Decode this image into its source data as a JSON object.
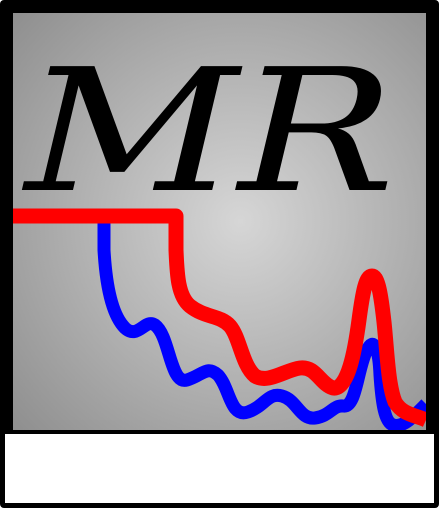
{
  "logo": {
    "monogram": "MR",
    "colors": {
      "frame": "#000000",
      "panel_center": "#d6d6d6",
      "panel_edge": "#8e8e8e",
      "red_trace": "#ff0000",
      "blue_trace": "#0000ff",
      "footer": "#ffffff"
    }
  }
}
